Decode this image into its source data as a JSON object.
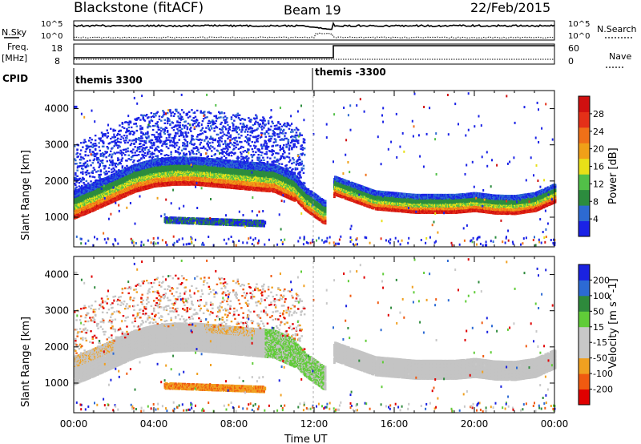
{
  "header": {
    "station": "Blackstone (fitACF)",
    "beam": "Beam 19",
    "date": "22/Feb/2015"
  },
  "aux": {
    "nsky_label": "N.Sky",
    "nsky_ticks": [
      "10^5",
      "10^0"
    ],
    "nsearch_label": "N.Search",
    "nsearch_ticks": [
      "10^5",
      "10^0"
    ],
    "freq_label_1": "Freq.",
    "freq_label_2": "[MHz]",
    "freq_ticks": [
      "18",
      "8"
    ],
    "nave_label": "Nave",
    "nave_ticks": [
      "60",
      "0"
    ],
    "cpid_label": "CPID",
    "cpid_segments": [
      "themis 3300",
      "themis -3300"
    ]
  },
  "colors": {
    "grid": "#dddddd",
    "power_scale": [
      "#1a22e6",
      "#2d6ad2",
      "#2c8c3e",
      "#52c048",
      "#e8e018",
      "#f0a018",
      "#f07018",
      "#e43018",
      "#d01010"
    ],
    "velocity_scale": [
      "#e00000",
      "#f05a10",
      "#f0a020",
      "#c8c8c8",
      "#c8c8c8",
      "#60cc38",
      "#2e8a3c",
      "#2c6ad4",
      "#1a22e0"
    ],
    "ground_scatter": "#c4c4c4"
  },
  "chart_data": [
    {
      "type": "heatmap",
      "panel": "power",
      "ylabel": "Slant Range [km]",
      "yticks": [
        "1000",
        "2000",
        "3000",
        "4000"
      ],
      "ylim": [
        180,
        4500
      ],
      "xlim_hours": [
        0,
        24
      ],
      "colorbar_label": "Power [dB]",
      "colorbar_ticks": [
        "4",
        "8",
        "12",
        "16",
        "20",
        "24",
        "28"
      ],
      "colorbar_range": [
        0,
        32
      ],
      "main_band_range_km": [
        {
          "t": 0.0,
          "r": 1320
        },
        {
          "t": 1.0,
          "r": 1550
        },
        {
          "t": 2.0,
          "r": 1800
        },
        {
          "t": 3.0,
          "r": 2050
        },
        {
          "t": 4.0,
          "r": 2200
        },
        {
          "t": 5.0,
          "r": 2250
        },
        {
          "t": 6.0,
          "r": 2250
        },
        {
          "t": 7.0,
          "r": 2200
        },
        {
          "t": 8.0,
          "r": 2150
        },
        {
          "t": 9.0,
          "r": 2100
        },
        {
          "t": 10.0,
          "r": 2050
        },
        {
          "t": 11.0,
          "r": 1800
        },
        {
          "t": 11.5,
          "r": 1500
        },
        {
          "t": 12.0,
          "r": 1300
        },
        {
          "t": 12.5,
          "r": 1100
        },
        {
          "t": 13.0,
          "r": 1850
        },
        {
          "t": 14.0,
          "r": 1650
        },
        {
          "t": 15.0,
          "r": 1450
        },
        {
          "t": 17.0,
          "r": 1350
        },
        {
          "t": 19.0,
          "r": 1350
        },
        {
          "t": 20.0,
          "r": 1400
        },
        {
          "t": 21.0,
          "r": 1330
        },
        {
          "t": 22.0,
          "r": 1320
        },
        {
          "t": 23.0,
          "r": 1400
        },
        {
          "t": 24.0,
          "r": 1650
        }
      ],
      "secondary_band": {
        "t_start": 4.5,
        "t_end": 9.5,
        "r_start": 900,
        "r_end": 800
      }
    },
    {
      "type": "heatmap",
      "panel": "velocity",
      "ylabel": "Slant Range [km]",
      "yticks": [
        "1000",
        "2000",
        "3000",
        "4000"
      ],
      "ylim": [
        180,
        4500
      ],
      "xlim_hours": [
        0,
        24
      ],
      "xlabel": "Time UT",
      "xticks": [
        "00:00",
        "04:00",
        "08:00",
        "12:00",
        "16:00",
        "20:00",
        "00:00"
      ],
      "colorbar_label": "Velocity [m s^-1]",
      "colorbar_ticks": [
        "-200",
        "-100",
        "-50",
        "-15",
        "15",
        "50",
        "100",
        "200"
      ],
      "colorbar_range": [
        -250,
        250
      ]
    }
  ]
}
